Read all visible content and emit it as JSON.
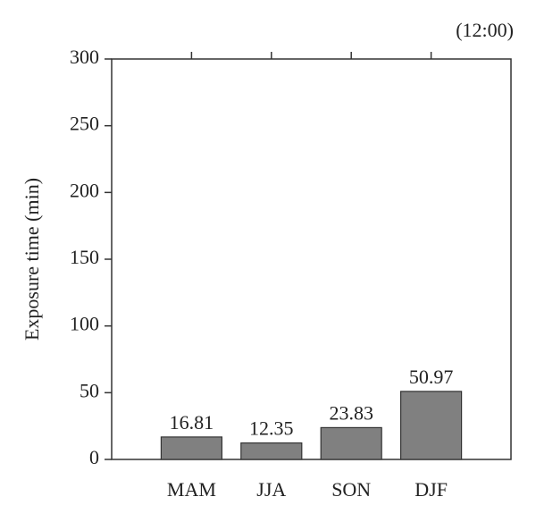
{
  "chart_data": {
    "type": "bar",
    "annotation": "(12:00)",
    "y_label": "Exposure time (min)",
    "categories": [
      "MAM",
      "JJA",
      "SON",
      "DJF"
    ],
    "values": [
      16.81,
      12.35,
      23.83,
      50.97
    ],
    "color": "#808080",
    "ylim": [
      0,
      300
    ],
    "yticks": [
      0,
      50,
      100,
      150,
      200,
      250,
      300
    ]
  }
}
